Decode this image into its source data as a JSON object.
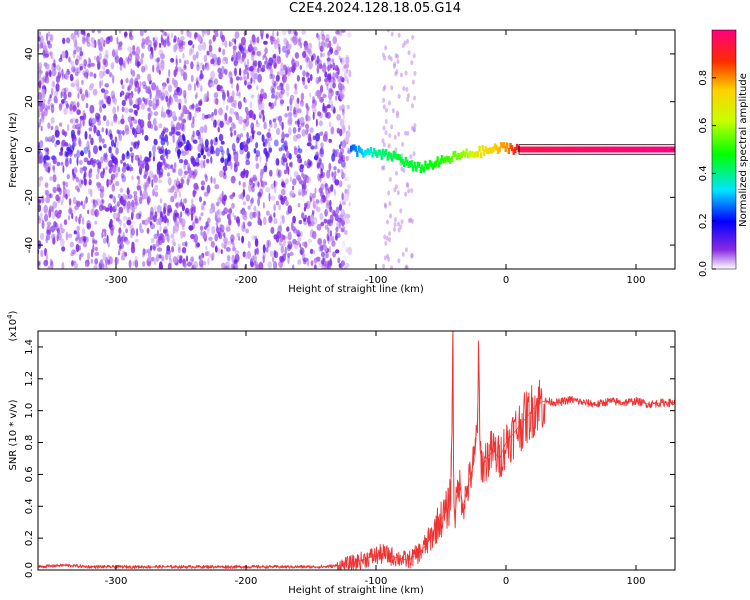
{
  "title": "C2E4.2024.128.18.05.G14",
  "chart_data": [
    {
      "type": "heatmap",
      "xlabel": "Height of straight line (km)",
      "ylabel": "Frequency (Hz)",
      "xlim": [
        -360,
        130
      ],
      "ylim": [
        -50,
        50
      ],
      "xticks": [
        -300,
        -200,
        -100,
        0,
        100
      ],
      "yticks": [
        -40,
        -20,
        0,
        20,
        40
      ],
      "colorbar": {
        "label": "Normalized spectral amplitude",
        "range": [
          0.0,
          1.0
        ],
        "ticks": [
          "0.0",
          "0.2",
          "0.4",
          "0.6",
          "0.8"
        ],
        "colormap": "rainbow"
      },
      "noise_region_x": [
        -360,
        -120
      ],
      "ridge": [
        {
          "x": -120,
          "y": 0,
          "amp": 0.25
        },
        {
          "x": -100,
          "y": -2,
          "amp": 0.4
        },
        {
          "x": -85,
          "y": -3,
          "amp": 0.45
        },
        {
          "x": -70,
          "y": -8,
          "amp": 0.45
        },
        {
          "x": -50,
          "y": -5,
          "amp": 0.5
        },
        {
          "x": -40,
          "y": -3,
          "amp": 0.55
        },
        {
          "x": -30,
          "y": -2,
          "amp": 0.6
        },
        {
          "x": -20,
          "y": -1,
          "amp": 0.7
        },
        {
          "x": 0,
          "y": 1,
          "amp": 0.8
        },
        {
          "x": 10,
          "y": 0,
          "amp": 0.95
        },
        {
          "x": 130,
          "y": 0,
          "amp": 1.0
        }
      ]
    },
    {
      "type": "line",
      "xlabel": "Height of straight line (km)",
      "ylabel": "SNR (10 * v/v)",
      "yunit": "(x10",
      "yunit_exp": "4",
      "yunit_close": ")",
      "xlim": [
        -360,
        130
      ],
      "ylim": [
        0,
        1.5
      ],
      "xticks": [
        -300,
        -200,
        -100,
        0,
        100
      ],
      "yticks": [
        "0.0",
        "0.2",
        "0.4",
        "0.6",
        "0.8",
        "1.0",
        "1.2",
        "1.4"
      ],
      "color": "#ee3333",
      "series": [
        {
          "x": [
            -360,
            -340,
            -320,
            -300,
            -280,
            -260,
            -240,
            -220,
            -200,
            -180,
            -160,
            -140,
            -125,
            -115,
            -105,
            -95,
            -85,
            -75,
            -65,
            -58,
            -52,
            -47,
            -44,
            -42,
            -41,
            -40,
            -39,
            -38,
            -36,
            -33,
            -30,
            -27,
            -24,
            -22,
            -21,
            -20,
            -19,
            -18,
            -15,
            -10,
            -5,
            0,
            5,
            10,
            15,
            20,
            25,
            30,
            40,
            50,
            60,
            70,
            80,
            90,
            100,
            110,
            120,
            130
          ],
          "y": [
            0.02,
            0.03,
            0.02,
            0.02,
            0.02,
            0.02,
            0.02,
            0.02,
            0.02,
            0.02,
            0.02,
            0.02,
            0.03,
            0.05,
            0.08,
            0.1,
            0.08,
            0.06,
            0.12,
            0.2,
            0.3,
            0.35,
            0.4,
            0.6,
            1.5,
            0.4,
            0.35,
            0.45,
            0.55,
            0.4,
            0.5,
            0.6,
            0.7,
            0.95,
            1.31,
            0.75,
            0.7,
            0.65,
            0.7,
            0.75,
            0.7,
            0.8,
            0.85,
            0.9,
            0.95,
            1.0,
            1.05,
            1.06,
            1.05,
            1.07,
            1.05,
            1.04,
            1.06,
            1.05,
            1.06,
            1.04,
            1.05,
            1.05
          ]
        }
      ]
    }
  ]
}
